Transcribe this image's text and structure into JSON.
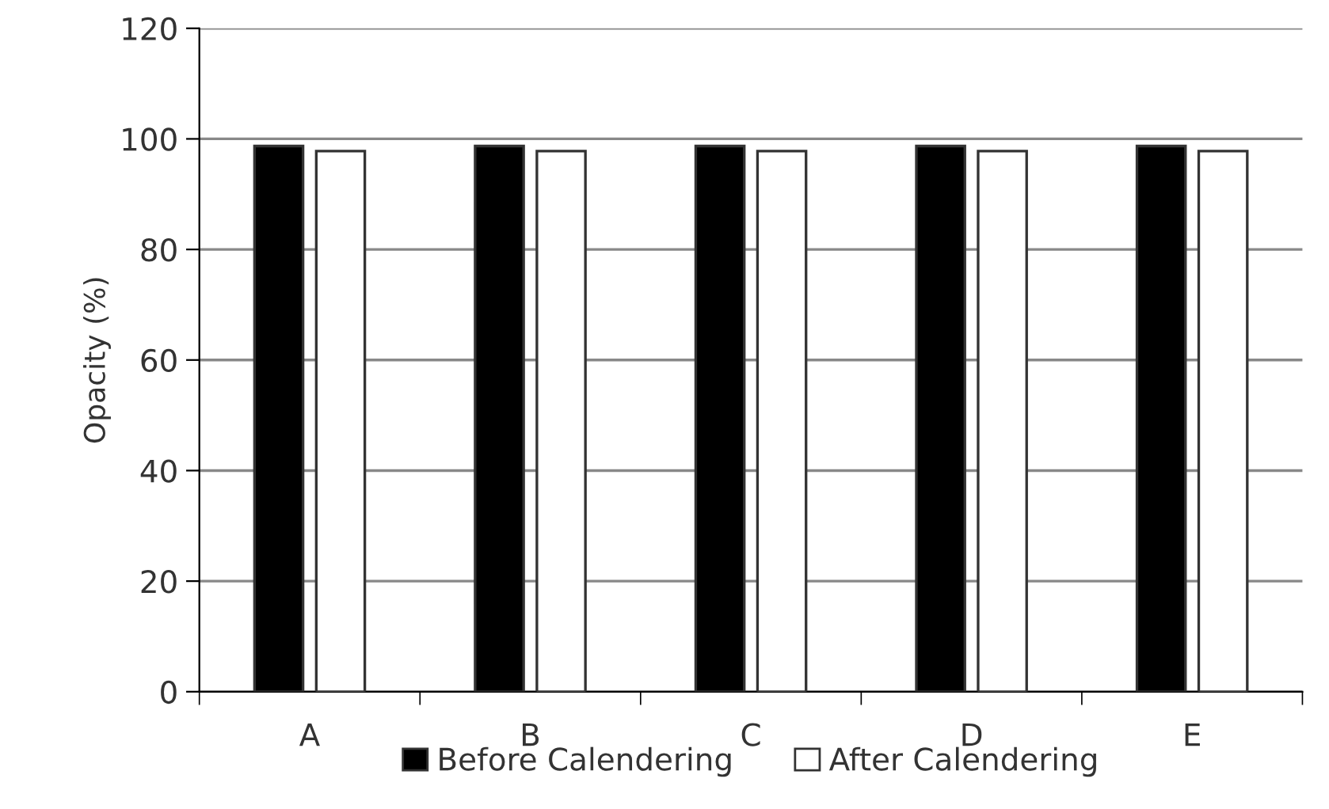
{
  "chart_data": {
    "type": "bar",
    "ylabel": "Opacity (%)",
    "categories": [
      "A",
      "B",
      "C",
      "D",
      "E"
    ],
    "series": [
      {
        "name": "Before Calendering",
        "color": "#000000",
        "values": [
          98.7,
          98.7,
          98.7,
          98.7,
          98.7
        ]
      },
      {
        "name": "After Calendering",
        "color": "#ffffff",
        "values": [
          97.8,
          97.8,
          97.8,
          97.8,
          97.8
        ]
      }
    ],
    "ylim": [
      0,
      120
    ],
    "yticks": [
      0,
      20,
      40,
      60,
      80,
      100,
      120
    ],
    "grid": "y",
    "legend": "bottom"
  }
}
